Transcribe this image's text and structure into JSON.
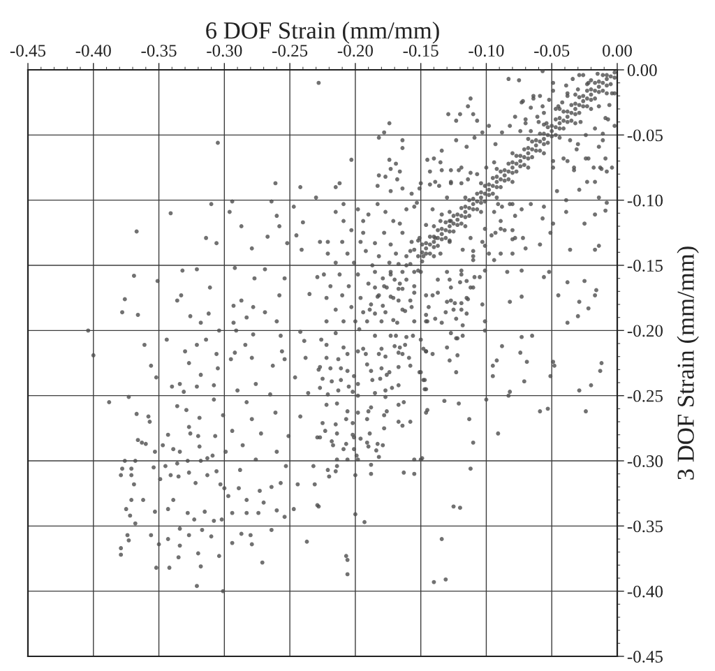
{
  "chart_data": {
    "type": "scatter",
    "xlabel": "6 DOF Strain (mm/mm)",
    "ylabel": "3 DOF Strain (mm/mm)",
    "xlim": [
      -0.45,
      0.0
    ],
    "ylim": [
      -0.45,
      0.0
    ],
    "xticks": [
      {
        "value": -0.45,
        "label": "-0.45"
      },
      {
        "value": -0.4,
        "label": "-0.40"
      },
      {
        "value": -0.35,
        "label": "-0.35"
      },
      {
        "value": -0.3,
        "label": "-0.30"
      },
      {
        "value": -0.25,
        "label": "-0.25"
      },
      {
        "value": -0.2,
        "label": "-0.20"
      },
      {
        "value": -0.15,
        "label": "-0.15"
      },
      {
        "value": -0.1,
        "label": "-0.10"
      },
      {
        "value": -0.05,
        "label": "-0.05"
      },
      {
        "value": 0.0,
        "label": "0.00"
      }
    ],
    "yticks": [
      {
        "value": 0.0,
        "label": "0.00"
      },
      {
        "value": -0.05,
        "label": "-0.05"
      },
      {
        "value": -0.1,
        "label": "-0.10"
      },
      {
        "value": -0.15,
        "label": "-0.15"
      },
      {
        "value": -0.2,
        "label": "-0.20"
      },
      {
        "value": -0.25,
        "label": "-0.25"
      },
      {
        "value": -0.3,
        "label": "-0.30"
      },
      {
        "value": -0.35,
        "label": "-0.35"
      },
      {
        "value": -0.4,
        "label": "-0.40"
      },
      {
        "value": -0.45,
        "label": "-0.45"
      }
    ],
    "grid": true,
    "marker": "circle",
    "series": [
      {
        "color": "#4d4d4d",
        "x": [
          -0.002,
          -0.008,
          -0.014,
          -0.02,
          -0.026,
          -0.032,
          -0.038,
          -0.044,
          -0.05,
          -0.056,
          -0.062,
          -0.068,
          -0.074,
          -0.08,
          -0.086,
          -0.092,
          -0.098,
          -0.104,
          -0.11,
          -0.116,
          -0.122,
          -0.128,
          -0.134,
          -0.14,
          -0.146,
          -0.152,
          -0.158,
          -0.164,
          -0.17,
          -0.176,
          -0.182,
          -0.188,
          -0.194,
          -0.2,
          -0.011,
          -0.017,
          -0.023,
          -0.029,
          -0.035,
          -0.041,
          -0.047,
          -0.053,
          -0.059,
          -0.065,
          -0.071,
          -0.077,
          -0.083,
          -0.089,
          -0.095,
          -0.101,
          -0.107,
          -0.113,
          -0.119,
          -0.125,
          -0.131,
          -0.137,
          -0.143,
          -0.149,
          -0.155,
          -0.161,
          -0.167,
          -0.173,
          -0.179,
          -0.185,
          -0.005,
          -0.011,
          -0.017,
          -0.023,
          -0.029,
          -0.035,
          -0.041,
          -0.047,
          -0.053,
          -0.059,
          -0.065,
          -0.071,
          -0.077,
          -0.083,
          -0.089,
          -0.095,
          -0.101,
          -0.107,
          -0.113,
          -0.119,
          -0.125,
          -0.131,
          -0.137,
          -0.143,
          -0.149,
          -0.155,
          -0.161,
          -0.167,
          -0.173,
          -0.179,
          -0.185,
          -0.191,
          -0.197,
          -0.02,
          -0.032,
          -0.044,
          -0.056,
          -0.068,
          -0.08,
          -0.092,
          -0.104,
          -0.116,
          -0.128,
          -0.14,
          -0.152,
          -0.008,
          -0.02,
          -0.032,
          -0.044,
          -0.056,
          -0.068,
          -0.08,
          -0.092,
          -0.104,
          -0.116,
          -0.128,
          -0.14,
          -0.152,
          -0.005,
          -0.011,
          -0.017,
          -0.023,
          -0.029,
          -0.035,
          -0.041,
          -0.047,
          -0.053,
          -0.059,
          -0.065,
          -0.071,
          -0.077,
          -0.083,
          -0.089,
          -0.095,
          -0.101,
          -0.107,
          -0.113,
          -0.119,
          -0.125,
          -0.131,
          -0.137,
          -0.143,
          -0.149,
          -0.002,
          -0.008,
          -0.014,
          -0.02,
          -0.026,
          -0.032,
          -0.038,
          -0.044,
          -0.05,
          -0.056,
          -0.062,
          -0.068,
          -0.074,
          -0.08,
          -0.086,
          -0.092,
          -0.098,
          -0.104,
          -0.11,
          -0.116,
          -0.122,
          -0.128,
          -0.134,
          -0.14,
          -0.146,
          -0.008,
          -0.014,
          -0.02,
          -0.026,
          -0.032,
          -0.038,
          -0.044,
          -0.05,
          -0.056,
          -0.062,
          -0.068,
          -0.074,
          -0.08,
          -0.086,
          -0.092,
          -0.098,
          -0.104,
          -0.11,
          -0.116,
          -0.122,
          -0.128,
          -0.134,
          -0.14,
          -0.146,
          -0.015,
          -0.022,
          -0.03,
          -0.026,
          -0.042,
          -0.047,
          -0.06,
          -0.038,
          -0.228,
          -0.305,
          -0.261,
          -0.242,
          -0.23,
          -0.31,
          -0.294,
          -0.341,
          -0.296,
          -0.264,
          -0.26,
          -0.247,
          -0.24,
          -0.287,
          -0.258,
          -0.367,
          -0.314,
          -0.306,
          -0.267,
          -0.245,
          -0.279,
          -0.252,
          -0.227,
          -0.241,
          -0.369,
          -0.351,
          -0.332,
          -0.321,
          -0.292,
          -0.277,
          -0.269,
          -0.254,
          -0.229,
          -0.311,
          -0.333,
          -0.376,
          -0.336,
          -0.258,
          -0.235,
          -0.378,
          -0.366,
          -0.326,
          -0.312,
          -0.293,
          -0.287,
          -0.278,
          -0.269,
          -0.318,
          -0.293,
          -0.283,
          -0.26,
          -0.404,
          -0.304,
          -0.291,
          -0.278,
          -0.257,
          -0.242,
          -0.226,
          -0.4,
          -0.361,
          -0.344,
          -0.321,
          -0.314,
          -0.284,
          -0.33,
          -0.306,
          -0.292,
          -0.256,
          -0.239,
          -0.356,
          -0.352,
          -0.327,
          -0.318,
          -0.305,
          -0.34,
          -0.334,
          -0.321,
          -0.308,
          -0.331,
          -0.388,
          -0.373,
          -0.367,
          -0.358,
          -0.357,
          -0.336,
          -0.329,
          -0.319,
          -0.308,
          -0.301,
          -0.366,
          -0.363,
          -0.36,
          -0.343,
          -0.327,
          -0.326,
          -0.32,
          -0.307,
          -0.347,
          -0.339,
          -0.353,
          -0.319,
          -0.313,
          -0.334,
          -0.376,
          -0.368,
          -0.378,
          -0.371,
          -0.379,
          -0.371,
          -0.369,
          -0.354,
          -0.345,
          -0.336,
          -0.328,
          -0.318,
          -0.309,
          -0.349,
          -0.341,
          -0.335,
          -0.327,
          -0.322,
          -0.313,
          -0.306,
          -0.303,
          -0.371,
          -0.362,
          -0.375,
          -0.372,
          -0.368,
          -0.353,
          -0.343,
          -0.339,
          -0.328,
          -0.323,
          -0.315,
          -0.308,
          -0.302,
          -0.334,
          -0.317,
          -0.374,
          -0.373,
          -0.356,
          -0.35,
          -0.343,
          -0.334,
          -0.327,
          -0.31,
          -0.379,
          -0.379,
          -0.335,
          -0.32,
          -0.304,
          -0.352,
          -0.342,
          -0.318,
          -0.321,
          -0.301,
          -0.294,
          -0.287,
          -0.28,
          -0.279,
          -0.271,
          -0.264,
          -0.237,
          -0.26,
          -0.254,
          -0.247,
          -0.229,
          -0.274,
          -0.283,
          -0.294,
          -0.27,
          -0.264,
          -0.257,
          -0.244,
          -0.231,
          -0.273,
          -0.289,
          -0.297,
          -0.283,
          -0.295,
          -0.279,
          -0.263,
          -0.254,
          -0.238,
          -0.228,
          -0.246,
          -0.276,
          -0.29,
          -0.265,
          -0.236,
          -0.283,
          -0.261,
          -0.242,
          -0.279,
          -0.294,
          -0.272,
          -0.251,
          -0.229,
          -0.286,
          -0.26,
          -0.299,
          -0.276,
          -0.253,
          -0.232,
          -0.288,
          -0.3,
          -0.222,
          -0.213,
          -0.206,
          -0.198,
          -0.192,
          -0.182,
          -0.177,
          -0.167,
          -0.164,
          -0.159,
          -0.227,
          -0.219,
          -0.211,
          -0.206,
          -0.201,
          -0.191,
          -0.188,
          -0.18,
          -0.174,
          -0.167,
          -0.158,
          -0.151,
          -0.225,
          -0.218,
          -0.211,
          -0.205,
          -0.198,
          -0.187,
          -0.181,
          -0.176,
          -0.167,
          -0.172,
          -0.148,
          -0.227,
          -0.221,
          -0.213,
          -0.202,
          -0.198,
          -0.185,
          -0.177,
          -0.177,
          -0.167,
          -0.163,
          -0.147,
          -0.222,
          -0.214,
          -0.206,
          -0.198,
          -0.19,
          -0.188,
          -0.176,
          -0.167,
          -0.158,
          -0.146,
          -0.225,
          -0.215,
          -0.207,
          -0.202,
          -0.191,
          -0.178,
          -0.178,
          -0.164,
          -0.223,
          -0.214,
          -0.202,
          -0.189,
          -0.227,
          -0.218,
          -0.217,
          -0.207,
          -0.201,
          -0.196,
          -0.191,
          -0.19,
          -0.183,
          -0.179,
          -0.209,
          -0.201,
          -0.184,
          -0.199,
          -0.221,
          -0.215,
          -0.22,
          -0.214,
          -0.2,
          -0.188,
          -0.188,
          -0.163,
          -0.155,
          -0.228,
          -0.2,
          -0.193,
          -0.207,
          -0.206,
          -0.206,
          -0.214,
          -0.206,
          -0.198,
          -0.155,
          -0.15,
          -0.182,
          -0.033,
          -0.023,
          -0.029,
          -0.039,
          -0.017,
          -0.009,
          -0.025,
          -0.036,
          -0.017,
          -0.038,
          -0.025,
          -0.045,
          -0.029,
          -0.03,
          -0.022,
          -0.017,
          -0.038,
          -0.082,
          -0.073,
          -0.084,
          -0.073,
          -0.056,
          -0.072,
          -0.059,
          -0.08,
          -0.089,
          -0.057,
          -0.049,
          -0.051,
          -0.056,
          -0.039,
          -0.046,
          -0.049,
          -0.038,
          -0.022,
          -0.013,
          -0.004,
          -0.011,
          -0.007,
          -0.014,
          -0.004,
          -0.028,
          -0.03,
          -0.017,
          -0.083,
          -0.073,
          -0.064,
          -0.049,
          -0.034,
          -0.057,
          -0.078,
          -0.082,
          -0.098,
          -0.112,
          -0.114,
          -0.129,
          -0.12,
          -0.11,
          -0.123,
          -0.107,
          -0.103,
          -0.123,
          -0.115,
          -0.134,
          -0.109,
          -0.093,
          -0.088,
          -0.07,
          -0.066,
          -0.174,
          -0.178,
          -0.182,
          -0.164,
          -0.164,
          -0.145,
          -0.14,
          -0.135,
          -0.174,
          -0.169,
          -0.173,
          -0.166,
          -0.182,
          -0.177,
          -0.168,
          -0.203,
          -0.212,
          -0.215,
          -0.183,
          -0.173,
          -0.164,
          -0.157,
          -0.151,
          -0.143,
          -0.134,
          -0.127,
          -0.119,
          -0.112,
          -0.127,
          -0.119,
          -0.136,
          -0.075,
          -0.057,
          -0.039,
          -0.209,
          -0.215,
          -0.198,
          -0.19,
          -0.183,
          -0.209,
          -0.194,
          -0.177,
          -0.171,
          -0.166,
          -0.161,
          -0.155,
          -0.203,
          -0.194,
          -0.178,
          -0.164,
          -0.221,
          -0.21,
          -0.196,
          -0.185,
          -0.173,
          -0.157,
          -0.221,
          -0.206,
          -0.192,
          -0.182,
          -0.169,
          -0.158,
          -0.215,
          -0.201,
          -0.187,
          -0.174,
          -0.161,
          -0.224,
          -0.212,
          -0.198,
          -0.185,
          -0.173,
          -0.219,
          -0.205,
          -0.19,
          -0.178,
          -0.166,
          -0.155,
          -0.222,
          -0.21,
          -0.196,
          -0.183,
          -0.171,
          -0.158,
          -0.215,
          -0.203,
          -0.189,
          -0.177,
          -0.164,
          -0.222,
          -0.209,
          -0.18,
          -0.168,
          -0.155,
          -0.215,
          -0.185,
          -0.173,
          -0.161,
          -0.222,
          -0.209,
          -0.194,
          -0.18,
          -0.166,
          -0.148,
          -0.141,
          -0.134,
          -0.127,
          -0.094,
          -0.088,
          -0.08,
          -0.073,
          -0.066,
          -0.101,
          -0.093,
          -0.08,
          -0.07,
          -0.101,
          -0.11,
          -0.094,
          -0.101,
          -0.11,
          -0.119,
          -0.128,
          -0.115,
          -0.105,
          -0.137,
          -0.127,
          -0.115,
          -0.112,
          -0.144,
          -0.131,
          -0.119,
          -0.103,
          -0.146,
          -0.134,
          -0.123,
          -0.101,
          -0.127,
          -0.101,
          -0.052,
          -0.123,
          -0.118,
          -0.146,
          -0.141,
          -0.128,
          -0.122,
          -0.123,
          -0.15,
          -0.147,
          -0.146,
          -0.073,
          -0.065,
          -0.088,
          -0.074,
          -0.092,
          -0.069,
          -0.095,
          -0.049,
          -0.048,
          -0.051,
          -0.095,
          -0.071,
          -0.012,
          -0.013,
          -0.02,
          -0.029,
          -0.082,
          -0.083,
          -0.1,
          -0.132,
          -0.121,
          -0.145,
          -0.059,
          -0.053,
          -0.024,
          -0.113,
          -0.091,
          -0.11,
          -0.149,
          -0.112,
          -0.125,
          -0.12,
          -0.134,
          -0.14,
          -0.131,
          -0.011,
          -0.012,
          -0.008,
          -0.014,
          -0.008,
          -0.014,
          -0.016,
          -0.072,
          -0.064,
          -0.066,
          -0.059,
          -0.052,
          -0.049,
          -0.029,
          -0.038,
          -0.045,
          -0.056,
          -0.061,
          -0.07,
          -0.054,
          -0.074,
          -0.023,
          -0.024,
          -0.017,
          -0.009,
          -0.006,
          -0.014,
          -0.024,
          -0.031,
          -0.036,
          -0.009,
          -0.033,
          -0.041,
          -0.049,
          -0.018,
          -0.002,
          -0.002,
          -0.143,
          -0.15,
          -0.139,
          -0.127,
          -0.121,
          -0.114,
          -0.107,
          -0.1,
          -0.094,
          -0.153,
          -0.13,
          -0.135,
          -0.146,
          -0.151,
          -0.139,
          -0.128,
          -0.148,
          -0.135,
          -0.091,
          -0.082,
          -0.078,
          -0.089,
          -0.086,
          -0.078,
          -0.096,
          -0.103,
          -0.098,
          -0.089,
          -0.08,
          -0.11,
          -0.118,
          -0.112,
          -0.146,
          -0.13,
          -0.124,
          -0.119,
          -0.114,
          -0.11,
          -0.12,
          -0.127,
          -0.137,
          -0.141,
          -0.125,
          -0.115,
          -0.146,
          -0.139,
          -0.145,
          -0.171,
          -0.162,
          -0.157,
          -0.167,
          -0.164,
          -0.155,
          -0.15,
          -0.13,
          -0.119,
          -0.109,
          -0.118,
          -0.122,
          -0.13,
          -0.146,
          -0.156,
          -0.162,
          -0.169,
          -0.17,
          -0.15
        ],
        "values": [
          -0.002,
          -0.007,
          -0.013,
          -0.019,
          -0.024,
          -0.03,
          -0.036,
          -0.041,
          -0.047,
          -0.053,
          -0.058,
          -0.064,
          -0.07,
          -0.075,
          -0.081,
          -0.086,
          -0.092,
          -0.098,
          -0.103,
          -0.109,
          -0.115,
          -0.12,
          -0.126,
          -0.132,
          -0.137,
          -0.143,
          -0.149,
          -0.155,
          -0.161,
          -0.167,
          -0.173,
          -0.18,
          -0.186,
          -0.193,
          -0.004,
          -0.01,
          -0.016,
          -0.021,
          -0.027,
          -0.032,
          -0.038,
          -0.044,
          -0.049,
          -0.055,
          -0.061,
          -0.066,
          -0.072,
          -0.078,
          -0.083,
          -0.089,
          -0.095,
          -0.1,
          -0.106,
          -0.112,
          -0.117,
          -0.123,
          -0.128,
          -0.134,
          -0.138,
          -0.143,
          -0.149,
          -0.155,
          -0.16,
          -0.167,
          -0.011,
          -0.016,
          -0.022,
          -0.028,
          -0.033,
          -0.039,
          -0.045,
          -0.05,
          -0.056,
          -0.062,
          -0.067,
          -0.073,
          -0.078,
          -0.084,
          -0.09,
          -0.095,
          -0.101,
          -0.107,
          -0.112,
          -0.118,
          -0.124,
          -0.129,
          -0.135,
          -0.141,
          -0.147,
          -0.155,
          -0.161,
          -0.168,
          -0.174,
          -0.181,
          -0.187,
          -0.193,
          -0.199,
          -0.008,
          -0.019,
          -0.03,
          -0.042,
          -0.053,
          -0.064,
          -0.076,
          -0.087,
          -0.098,
          -0.109,
          -0.12,
          -0.131,
          -0.018,
          -0.03,
          -0.041,
          -0.052,
          -0.064,
          -0.075,
          -0.086,
          -0.098,
          -0.109,
          -0.12,
          -0.131,
          -0.143,
          -0.154,
          -0.005,
          -0.01,
          -0.016,
          -0.022,
          -0.027,
          -0.033,
          -0.039,
          -0.044,
          -0.05,
          -0.055,
          -0.061,
          -0.067,
          -0.072,
          -0.078,
          -0.084,
          -0.089,
          -0.095,
          -0.101,
          -0.106,
          -0.112,
          -0.118,
          -0.123,
          -0.129,
          -0.134,
          -0.14,
          -0.006,
          -0.012,
          -0.017,
          -0.023,
          -0.028,
          -0.034,
          -0.04,
          -0.045,
          -0.051,
          -0.057,
          -0.062,
          -0.068,
          -0.074,
          -0.079,
          -0.085,
          -0.09,
          -0.096,
          -0.102,
          -0.107,
          -0.113,
          -0.119,
          -0.124,
          -0.13,
          -0.136,
          -0.141,
          -0.004,
          -0.009,
          -0.015,
          -0.02,
          -0.026,
          -0.032,
          -0.037,
          -0.043,
          -0.049,
          -0.054,
          -0.06,
          -0.066,
          -0.071,
          -0.077,
          -0.082,
          -0.088,
          -0.094,
          -0.099,
          -0.105,
          -0.111,
          -0.116,
          -0.122,
          -0.128,
          -0.133,
          -0.003,
          -0.01,
          -0.015,
          -0.004,
          -0.025,
          -0.03,
          -0.04,
          -0.018,
          -0.01,
          -0.056,
          -0.087,
          -0.09,
          -0.098,
          -0.103,
          -0.101,
          -0.11,
          -0.109,
          -0.101,
          -0.112,
          -0.105,
          -0.117,
          -0.12,
          -0.12,
          -0.124,
          -0.129,
          -0.133,
          -0.128,
          -0.127,
          -0.137,
          -0.133,
          -0.132,
          -0.138,
          -0.158,
          -0.162,
          -0.154,
          -0.153,
          -0.152,
          -0.16,
          -0.153,
          -0.16,
          -0.159,
          -0.167,
          -0.173,
          -0.176,
          -0.177,
          -0.173,
          -0.172,
          -0.186,
          -0.188,
          -0.189,
          -0.187,
          -0.181,
          -0.177,
          -0.182,
          -0.186,
          -0.194,
          -0.194,
          -0.19,
          -0.193,
          -0.2,
          -0.2,
          -0.2,
          -0.203,
          -0.204,
          -0.201,
          -0.207,
          -0.219,
          -0.211,
          -0.207,
          -0.211,
          -0.207,
          -0.211,
          -0.216,
          -0.218,
          -0.217,
          -0.216,
          -0.208,
          -0.227,
          -0.236,
          -0.225,
          -0.234,
          -0.229,
          -0.243,
          -0.241,
          -0.243,
          -0.242,
          -0.247,
          -0.255,
          -0.251,
          -0.264,
          -0.266,
          -0.27,
          -0.258,
          -0.261,
          -0.267,
          -0.253,
          -0.265,
          -0.284,
          -0.286,
          -0.287,
          -0.28,
          -0.274,
          -0.279,
          -0.281,
          -0.281,
          -0.288,
          -0.291,
          -0.293,
          -0.289,
          -0.298,
          -0.293,
          -0.3,
          -0.3,
          -0.306,
          -0.306,
          -0.311,
          -0.311,
          -0.318,
          -0.305,
          -0.304,
          -0.302,
          -0.3,
          -0.3,
          -0.296,
          -0.314,
          -0.311,
          -0.312,
          -0.309,
          -0.317,
          -0.311,
          -0.308,
          -0.318,
          -0.33,
          -0.33,
          -0.337,
          -0.342,
          -0.348,
          -0.339,
          -0.337,
          -0.33,
          -0.34,
          -0.345,
          -0.339,
          -0.346,
          -0.345,
          -0.352,
          -0.353,
          -0.357,
          -0.361,
          -0.357,
          -0.364,
          -0.36,
          -0.365,
          -0.357,
          -0.358,
          -0.367,
          -0.372,
          -0.374,
          -0.371,
          -0.373,
          -0.382,
          -0.382,
          -0.381,
          -0.396,
          -0.4,
          -0.363,
          -0.356,
          -0.357,
          -0.364,
          -0.378,
          -0.353,
          -0.362,
          -0.338,
          -0.343,
          -0.337,
          -0.334,
          -0.34,
          -0.34,
          -0.34,
          -0.332,
          -0.32,
          -0.317,
          -0.318,
          -0.318,
          -0.323,
          -0.321,
          -0.327,
          -0.33,
          -0.222,
          -0.221,
          -0.227,
          -0.222,
          -0.221,
          -0.23,
          -0.236,
          -0.241,
          -0.246,
          -0.249,
          -0.248,
          -0.255,
          -0.263,
          -0.266,
          -0.268,
          -0.277,
          -0.279,
          -0.281,
          -0.282,
          -0.288,
          -0.293,
          -0.293,
          -0.299,
          -0.304,
          -0.304,
          -0.307,
          -0.321,
          -0.221,
          -0.222,
          -0.218,
          -0.216,
          -0.218,
          -0.218,
          -0.22,
          -0.217,
          -0.218,
          -0.221,
          -0.228,
          -0.229,
          -0.229,
          -0.231,
          -0.235,
          -0.226,
          -0.231,
          -0.229,
          -0.232,
          -0.228,
          -0.227,
          -0.232,
          -0.237,
          -0.239,
          -0.238,
          -0.243,
          -0.241,
          -0.238,
          -0.237,
          -0.234,
          -0.242,
          -0.244,
          -0.238,
          -0.244,
          -0.249,
          -0.246,
          -0.247,
          -0.25,
          -0.248,
          -0.251,
          -0.246,
          -0.257,
          -0.255,
          -0.245,
          -0.257,
          -0.256,
          -0.262,
          -0.263,
          -0.262,
          -0.259,
          -0.262,
          -0.27,
          -0.27,
          -0.263,
          -0.271,
          -0.272,
          -0.268,
          -0.271,
          -0.268,
          -0.265,
          -0.275,
          -0.273,
          -0.277,
          -0.279,
          -0.28,
          -0.279,
          -0.282,
          -0.285,
          -0.288,
          -0.287,
          -0.282,
          -0.283,
          -0.286,
          -0.289,
          -0.287,
          -0.288,
          -0.291,
          -0.291,
          -0.292,
          -0.296,
          -0.307,
          -0.308,
          -0.312,
          -0.304,
          -0.311,
          -0.303,
          -0.31,
          -0.309,
          -0.31,
          -0.335,
          -0.341,
          -0.347,
          -0.373,
          -0.376,
          -0.387,
          -0.299,
          -0.299,
          -0.299,
          -0.299,
          -0.299,
          -0.297,
          -0.077,
          -0.086,
          -0.092,
          -0.109,
          -0.111,
          -0.108,
          -0.118,
          -0.138,
          -0.138,
          -0.163,
          -0.162,
          -0.173,
          -0.178,
          -0.189,
          -0.183,
          -0.173,
          -0.194,
          -0.178,
          -0.174,
          -0.155,
          -0.154,
          -0.159,
          -0.129,
          -0.134,
          -0.123,
          -0.122,
          -0.114,
          -0.118,
          -0.125,
          -0.105,
          -0.1,
          -0.093,
          -0.07,
          -0.07,
          -0.068,
          -0.075,
          -0.075,
          -0.054,
          -0.038,
          -0.028,
          -0.018,
          -0.04,
          -0.057,
          -0.086,
          -0.007,
          -0.025,
          -0.02,
          -0.01,
          -0.007,
          -0.028,
          -0.036,
          -0.043,
          -0.043,
          -0.022,
          -0.028,
          -0.034,
          -0.034,
          -0.034,
          -0.039,
          -0.039,
          -0.048,
          -0.054,
          -0.059,
          -0.062,
          -0.052,
          -0.057,
          -0.048,
          -0.038,
          -0.047,
          -0.041,
          -0.048,
          -0.052,
          -0.054,
          -0.06,
          -0.069,
          -0.068,
          -0.071,
          -0.069,
          -0.072,
          -0.076,
          -0.078,
          -0.081,
          -0.082,
          -0.084,
          -0.069,
          -0.087,
          -0.09,
          -0.089,
          -0.093,
          -0.091,
          -0.095,
          -0.091,
          -0.088,
          -0.077,
          -0.077,
          -0.075,
          -0.079,
          -0.086,
          -0.087,
          -0.089,
          -0.008,
          -0.001,
          -0.012,
          -0.103,
          -0.109,
          -0.107,
          -0.111,
          -0.103,
          -0.116,
          -0.116,
          -0.109,
          -0.116,
          -0.118,
          -0.107,
          -0.105,
          -0.123,
          -0.125,
          -0.125,
          -0.125,
          -0.132,
          -0.132,
          -0.132,
          -0.133,
          -0.134,
          -0.132,
          -0.141,
          -0.141,
          -0.139,
          -0.143,
          -0.141,
          -0.139,
          -0.148,
          -0.148,
          -0.15,
          -0.148,
          -0.15,
          -0.157,
          -0.157,
          -0.157,
          -0.155,
          -0.157,
          -0.166,
          -0.166,
          -0.164,
          -0.166,
          -0.164,
          -0.166,
          -0.175,
          -0.173,
          -0.175,
          -0.174,
          -0.175,
          -0.177,
          -0.184,
          -0.182,
          -0.184,
          -0.186,
          -0.184,
          -0.193,
          -0.193,
          -0.193,
          -0.194,
          -0.193,
          -0.202,
          -0.204,
          -0.204,
          -0.205,
          -0.211,
          -0.213,
          -0.214,
          -0.214,
          -0.213,
          -0.214,
          -0.107,
          -0.111,
          -0.116,
          -0.109,
          -0.105,
          -0.103,
          -0.107,
          -0.103,
          -0.122,
          -0.125,
          -0.13,
          -0.137,
          -0.135,
          -0.139,
          -0.146,
          -0.154,
          -0.146,
          -0.154,
          -0.161,
          -0.162,
          -0.159,
          -0.171,
          -0.177,
          -0.175,
          -0.167,
          -0.182,
          -0.186,
          -0.184,
          -0.18,
          -0.193,
          -0.194,
          -0.191,
          -0.193,
          -0.202,
          -0.2,
          -0.155,
          -0.206,
          -0.204,
          -0.216,
          -0.218,
          -0.223,
          -0.219,
          -0.232,
          -0.232,
          -0.238,
          -0.245,
          -0.205,
          -0.204,
          -0.212,
          -0.217,
          -0.223,
          -0.224,
          -0.227,
          -0.224,
          -0.227,
          -0.235,
          -0.235,
          -0.239,
          -0.225,
          -0.231,
          -0.242,
          -0.246,
          -0.247,
          -0.25,
          -0.253,
          -0.254,
          -0.256,
          -0.261,
          -0.262,
          -0.26,
          -0.262,
          -0.268,
          -0.279,
          -0.286,
          -0.298,
          -0.306,
          -0.335,
          -0.336,
          -0.36,
          -0.393,
          -0.391,
          -0.049,
          -0.076,
          -0.078,
          -0.098,
          -0.102,
          -0.135,
          -0.169,
          -0.024,
          -0.022,
          -0.029,
          -0.02,
          -0.023,
          -0.016,
          -0.004,
          -0.02,
          -0.028,
          -0.033,
          -0.036,
          -0.041,
          -0.041,
          -0.047,
          -0.011,
          -0.05,
          -0.045,
          -0.037,
          -0.027,
          -0.059,
          -0.068,
          -0.061,
          -0.054,
          -0.068,
          -0.075,
          -0.068,
          -0.075,
          -0.075,
          -0.043,
          -0.018,
          -0.078,
          -0.087,
          -0.086,
          -0.087,
          -0.077,
          -0.084,
          -0.08,
          -0.075,
          -0.071,
          -0.102,
          -0.098,
          -0.116,
          -0.119,
          -0.129,
          -0.129,
          -0.132,
          -0.143,
          -0.141,
          -0.103,
          -0.103,
          -0.112,
          -0.116,
          -0.123,
          -0.129,
          -0.127,
          -0.132,
          -0.141,
          -0.141,
          -0.141,
          -0.143,
          -0.138,
          -0.129,
          -0.173,
          -0.178,
          -0.179,
          -0.179,
          -0.176,
          -0.167,
          -0.163,
          -0.167,
          -0.161,
          -0.173,
          -0.184,
          -0.187,
          -0.188,
          -0.191,
          -0.193,
          -0.192,
          -0.185,
          -0.182,
          -0.177,
          -0.168,
          -0.171,
          -0.155,
          -0.155,
          -0.157,
          -0.159,
          -0.196,
          -0.206,
          -0.213,
          -0.216,
          -0.204,
          -0.211,
          -0.204,
          -0.212,
          -0.207
        ]
      }
    ]
  }
}
